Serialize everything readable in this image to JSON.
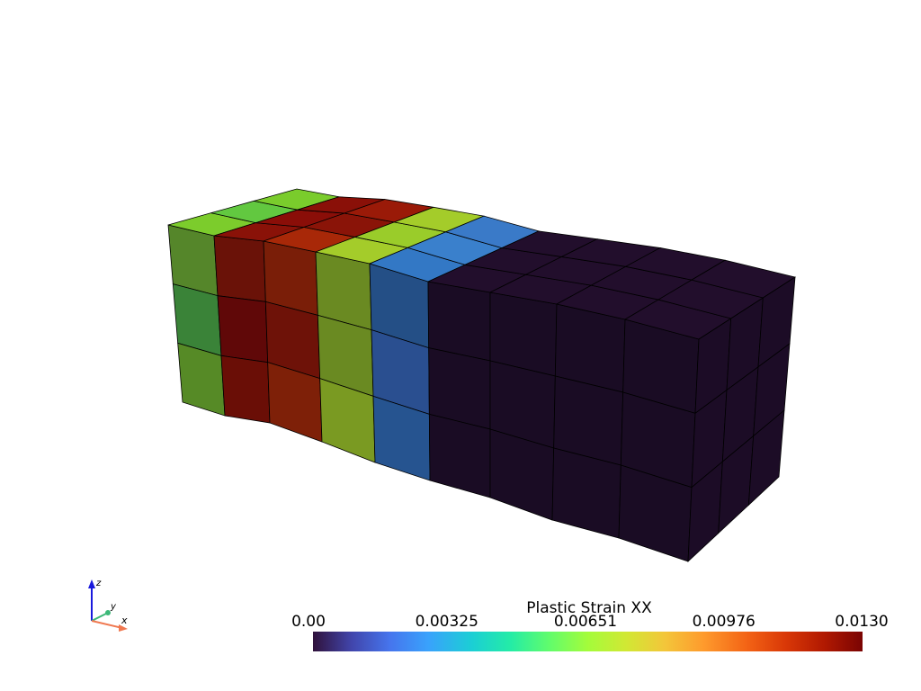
{
  "scalar_bar": {
    "title": "Plastic Strain XX",
    "range": [
      0,
      0.013
    ],
    "ticks": [
      {
        "value": 0,
        "label": "0.00"
      },
      0.00325,
      0.00651,
      0.00976,
      {
        "value": 0.013,
        "label": "0.0130"
      }
    ]
  },
  "axes": {
    "z": "z",
    "y": "y",
    "x": "x"
  }
}
